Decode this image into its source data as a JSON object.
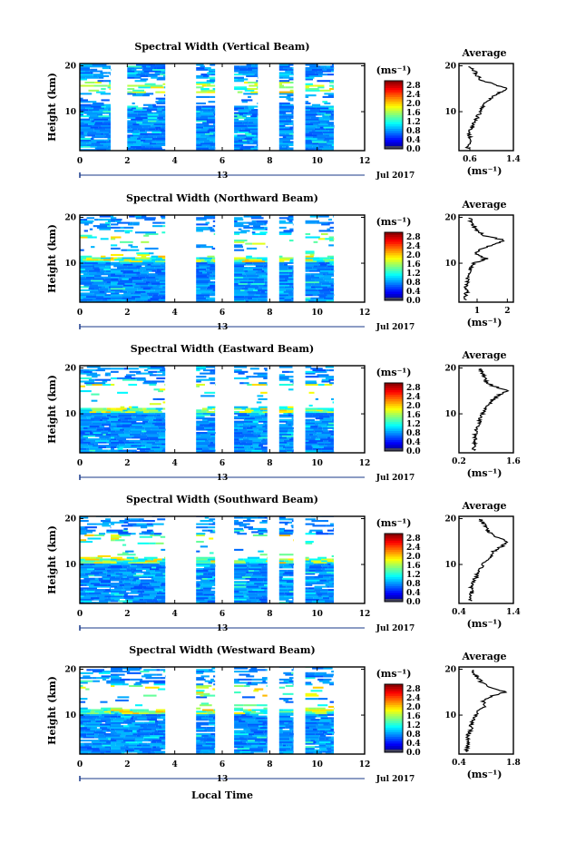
{
  "figure": {
    "xlabel": "Local Time",
    "ylabel": "Height (km)",
    "date_label": "Jul 2017",
    "day_label": "13",
    "x_ticks": [
      "0",
      "2",
      "4",
      "6",
      "8",
      "10",
      "12"
    ],
    "y_ticks": [
      "20",
      "10"
    ],
    "colorbar_unit": "(ms⁻¹)",
    "colorbar_ticks": [
      "2.8",
      "2.4",
      "2.0",
      "1.6",
      "1.2",
      "0.8",
      "0.4",
      "0.0"
    ],
    "avg_title": "Average",
    "avg_unit": "(ms⁻¹)"
  },
  "chart_data": [
    {
      "type": "heatmap",
      "title": "Spectral Width (Vertical Beam)",
      "xlabel": "Local Time",
      "ylabel": "Height (km)",
      "xlim": [
        0,
        12
      ],
      "ylim": [
        1.5,
        20.5
      ],
      "colorbar_range": [
        0.0,
        3.0
      ],
      "colorbar_unit": "ms⁻¹",
      "data_blocks_hours": [
        [
          0,
          1.3
        ],
        [
          2.0,
          3.6
        ],
        [
          4.9,
          5.7
        ],
        [
          6.5,
          7.5
        ],
        [
          8.4,
          9.0
        ],
        [
          9.5,
          10.7
        ]
      ],
      "average_profile": {
        "title": "Average",
        "xlabel": "(ms⁻¹)",
        "xlim": [
          0.4,
          1.4
        ],
        "x_ticks": [
          0.6,
          1.4
        ],
        "ylim": [
          1.5,
          20.5
        ],
        "height_km": [
          2,
          3,
          4,
          5,
          6,
          7,
          8,
          9,
          10,
          11,
          12,
          13,
          14,
          15,
          16,
          17,
          18,
          19,
          20
        ],
        "width": [
          0.56,
          0.58,
          0.6,
          0.58,
          0.62,
          0.66,
          0.7,
          0.74,
          0.8,
          0.82,
          0.9,
          1.0,
          1.12,
          1.3,
          1.02,
          0.8,
          0.72,
          0.68,
          0.6
        ]
      }
    },
    {
      "type": "heatmap",
      "title": "Spectral Width (Northward Beam)",
      "xlabel": "Local Time",
      "ylabel": "Height (km)",
      "xlim": [
        0,
        12
      ],
      "ylim": [
        1.5,
        20.5
      ],
      "colorbar_range": [
        0.0,
        3.0
      ],
      "colorbar_unit": "ms⁻¹",
      "data_blocks_hours": [
        [
          0,
          1.3
        ],
        [
          1.3,
          3.6
        ],
        [
          4.9,
          5.7
        ],
        [
          6.5,
          7.9
        ],
        [
          8.4,
          9.0
        ],
        [
          9.5,
          10.7
        ]
      ],
      "average_profile": {
        "title": "Average",
        "xlabel": "(ms⁻¹)",
        "xlim": [
          0.4,
          2.2
        ],
        "x_ticks": [
          1,
          2
        ],
        "ylim": [
          1.5,
          20.5
        ],
        "height_km": [
          2,
          3,
          4,
          5,
          6,
          7,
          8,
          9,
          10,
          11,
          12,
          13,
          14,
          15,
          16,
          17,
          18,
          19,
          20
        ],
        "width": [
          0.62,
          0.64,
          0.66,
          0.64,
          0.7,
          0.68,
          0.72,
          0.78,
          0.9,
          1.3,
          0.95,
          1.1,
          1.5,
          1.9,
          1.25,
          1.0,
          0.9,
          0.8,
          0.75
        ]
      }
    },
    {
      "type": "heatmap",
      "title": "Spectral Width (Eastward Beam)",
      "xlabel": "Local Time",
      "ylabel": "Height (km)",
      "xlim": [
        0,
        12
      ],
      "ylim": [
        1.5,
        20.5
      ],
      "colorbar_range": [
        0.0,
        3.0
      ],
      "colorbar_unit": "ms⁻¹",
      "data_blocks_hours": [
        [
          0,
          1.3
        ],
        [
          1.3,
          3.6
        ],
        [
          4.9,
          5.7
        ],
        [
          6.5,
          7.9
        ],
        [
          8.4,
          9.0
        ],
        [
          9.5,
          10.7
        ]
      ],
      "average_profile": {
        "title": "Average",
        "xlabel": "(ms⁻¹)",
        "xlim": [
          0.2,
          1.6
        ],
        "x_ticks": [
          0.2,
          1.6
        ],
        "ylim": [
          1.5,
          20.5
        ],
        "height_km": [
          2,
          3,
          4,
          5,
          6,
          7,
          8,
          9,
          10,
          11,
          12,
          13,
          14,
          15,
          16,
          17,
          18,
          19,
          20
        ],
        "width": [
          0.58,
          0.6,
          0.62,
          0.6,
          0.64,
          0.66,
          0.7,
          0.76,
          0.82,
          0.88,
          0.95,
          1.05,
          1.2,
          1.45,
          1.1,
          0.9,
          0.85,
          0.8,
          0.72
        ]
      }
    },
    {
      "type": "heatmap",
      "title": "Spectral Width (Southward Beam)",
      "xlabel": "Local Time",
      "ylabel": "Height (km)",
      "xlim": [
        0,
        12
      ],
      "ylim": [
        1.5,
        20.5
      ],
      "colorbar_range": [
        0.0,
        3.0
      ],
      "colorbar_unit": "ms⁻¹",
      "data_blocks_hours": [
        [
          0,
          1.3
        ],
        [
          1.3,
          3.6
        ],
        [
          4.9,
          5.7
        ],
        [
          6.5,
          7.9
        ],
        [
          8.4,
          9.0
        ],
        [
          9.5,
          10.7
        ]
      ],
      "average_profile": {
        "title": "Average",
        "xlabel": "(ms⁻¹)",
        "xlim": [
          0.4,
          1.4
        ],
        "x_ticks": [
          0.4,
          1.4
        ],
        "ylim": [
          1.5,
          20.5
        ],
        "height_km": [
          2,
          3,
          4,
          5,
          6,
          7,
          8,
          9,
          10,
          11,
          12,
          13,
          14,
          15,
          16,
          17,
          18,
          19,
          20
        ],
        "width": [
          0.6,
          0.62,
          0.64,
          0.62,
          0.66,
          0.7,
          0.74,
          0.78,
          0.84,
          0.9,
          1.0,
          1.05,
          1.2,
          1.3,
          1.1,
          0.95,
          0.9,
          0.85,
          0.78
        ]
      }
    },
    {
      "type": "heatmap",
      "title": "Spectral Width (Westward Beam)",
      "xlabel": "Local Time",
      "ylabel": "Height (km)",
      "xlim": [
        0,
        12
      ],
      "ylim": [
        1.5,
        20.5
      ],
      "colorbar_range": [
        0.0,
        3.0
      ],
      "colorbar_unit": "ms⁻¹",
      "data_blocks_hours": [
        [
          0,
          1.3
        ],
        [
          1.3,
          3.6
        ],
        [
          4.9,
          5.7
        ],
        [
          6.5,
          7.9
        ],
        [
          8.4,
          9.0
        ],
        [
          9.5,
          10.7
        ]
      ],
      "average_profile": {
        "title": "Average",
        "xlabel": "(ms⁻¹)",
        "xlim": [
          0.4,
          1.8
        ],
        "x_ticks": [
          0.4,
          1.8
        ],
        "ylim": [
          1.5,
          20.5
        ],
        "height_km": [
          2,
          3,
          4,
          5,
          6,
          7,
          8,
          9,
          10,
          11,
          12,
          13,
          14,
          15,
          16,
          17,
          18,
          19,
          20
        ],
        "width": [
          0.6,
          0.62,
          0.64,
          0.62,
          0.66,
          0.7,
          0.72,
          0.76,
          0.82,
          0.9,
          1.1,
          1.0,
          1.2,
          1.6,
          1.2,
          1.0,
          0.9,
          0.8,
          0.75
        ]
      }
    }
  ]
}
